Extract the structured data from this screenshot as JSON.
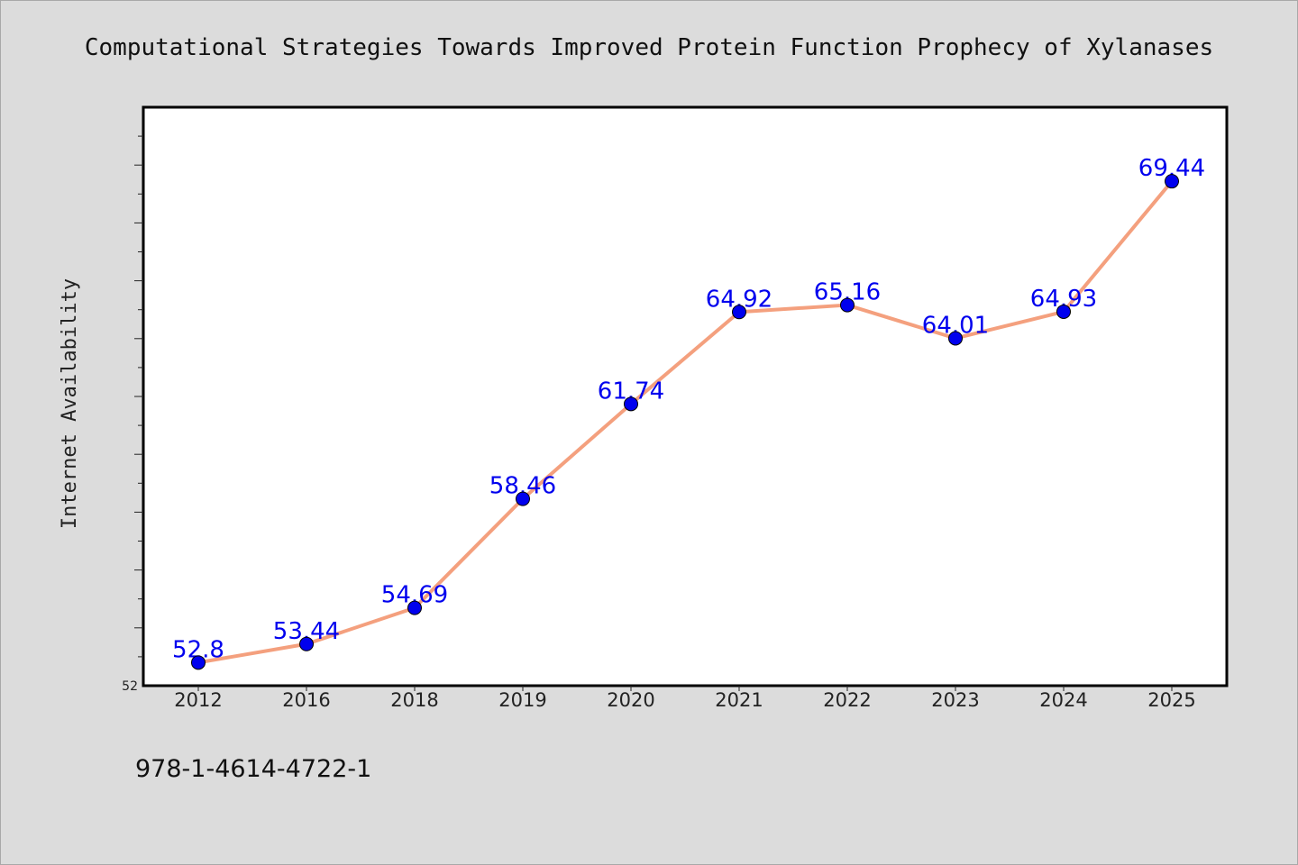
{
  "chart_data": {
    "type": "line",
    "title": "Computational Strategies Towards Improved Protein Function Prophecy of Xylanases",
    "xlabel": "",
    "ylabel": "Internet Availability",
    "categories": [
      "2012",
      "2016",
      "2018",
      "2019",
      "2020",
      "2021",
      "2022",
      "2023",
      "2024",
      "2025"
    ],
    "series": [
      {
        "values": [
          52.8,
          53.44,
          54.69,
          58.46,
          61.74,
          64.92,
          65.16,
          64.01,
          64.93,
          69.44
        ],
        "labels": [
          "52.8",
          "53.44",
          "54.69",
          "58.46",
          "61.74",
          "64.92",
          "65.16",
          "64.01",
          "64.93",
          "69.44"
        ],
        "line_color": "#f4a07e",
        "marker_color": "#0000ee"
      }
    ],
    "ylim": [
      52,
      72
    ],
    "y_tick_labels": [
      "52"
    ],
    "grid": false,
    "legend": "none"
  },
  "footer": {
    "text": "978-1-4614-4722-1"
  }
}
